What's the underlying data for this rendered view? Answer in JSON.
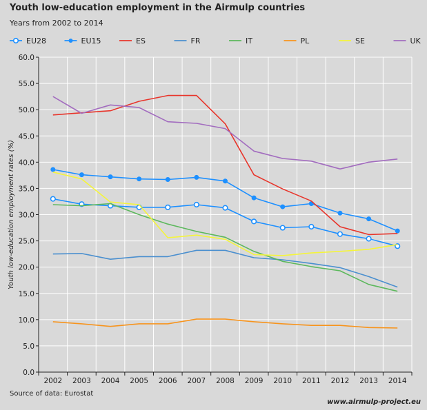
{
  "header": {
    "title": "Youth low-education employment in the Airmulp countries",
    "subtitle": "Years from 2002 to 2014"
  },
  "footer": {
    "source": "Source of data: Eurostat",
    "url": "www.airmulp-project.eu"
  },
  "chart_data": {
    "type": "line",
    "title": "Youth low-education employment in the Airmulp countries",
    "subtitle": "Years from 2002 to 2014",
    "xlabel": "",
    "ylabel": "Youth low-education employment rates (%)",
    "ylim": [
      0,
      60
    ],
    "yticks": [
      "0.0",
      "5.0",
      "10.0",
      "15.0",
      "20.0",
      "25.0",
      "30.0",
      "35.0",
      "40.0",
      "45.0",
      "50.0",
      "55.0",
      "60.0"
    ],
    "x": [
      "2002",
      "2003",
      "2004",
      "2005",
      "2006",
      "2007",
      "2008",
      "2009",
      "2010",
      "2011",
      "2012",
      "2013",
      "2014"
    ],
    "grid": true,
    "legend_position": "top",
    "series": [
      {
        "name": "EU28",
        "color": "#1e90ff",
        "marker": "open-circle",
        "values": [
          33.0,
          32.0,
          31.7,
          31.4,
          31.4,
          31.9,
          31.3,
          28.7,
          27.5,
          27.7,
          26.3,
          25.4,
          24.0
        ]
      },
      {
        "name": "EU15",
        "color": "#1e90ff",
        "marker": "filled-circle",
        "values": [
          38.6,
          37.6,
          37.2,
          36.8,
          36.7,
          37.1,
          36.4,
          33.2,
          31.5,
          32.1,
          30.3,
          29.2,
          26.9
        ]
      },
      {
        "name": "ES",
        "color": "#e8352b",
        "marker": "none",
        "values": [
          49.0,
          49.4,
          49.8,
          51.6,
          52.7,
          52.7,
          47.3,
          37.6,
          34.9,
          32.6,
          27.7,
          26.2,
          26.4
        ]
      },
      {
        "name": "FR",
        "color": "#4a8fcf",
        "marker": "none",
        "values": [
          22.5,
          22.6,
          21.5,
          22.0,
          22.0,
          23.2,
          23.2,
          21.8,
          21.4,
          20.7,
          19.9,
          18.2,
          16.2
        ]
      },
      {
        "name": "IT",
        "color": "#5cb85c",
        "marker": "none",
        "values": [
          31.9,
          31.7,
          32.1,
          30.0,
          28.2,
          26.8,
          25.7,
          23.0,
          21.1,
          20.1,
          19.3,
          16.7,
          15.4
        ]
      },
      {
        "name": "PL",
        "color": "#f7941d",
        "marker": "none",
        "values": [
          9.6,
          9.2,
          8.7,
          9.2,
          9.2,
          10.1,
          10.1,
          9.6,
          9.2,
          8.9,
          8.9,
          8.5,
          8.4
        ]
      },
      {
        "name": "SE",
        "color": "#f5f53a",
        "marker": "none",
        "values": [
          38.1,
          36.8,
          32.4,
          31.9,
          25.6,
          26.1,
          25.3,
          22.4,
          22.2,
          22.7,
          23.0,
          23.4,
          24.3
        ]
      },
      {
        "name": "UK",
        "color": "#a26cbf",
        "marker": "none",
        "values": [
          52.5,
          49.3,
          50.9,
          50.4,
          47.7,
          47.4,
          46.4,
          42.1,
          40.7,
          40.2,
          38.7,
          40.0,
          40.6
        ]
      }
    ]
  }
}
